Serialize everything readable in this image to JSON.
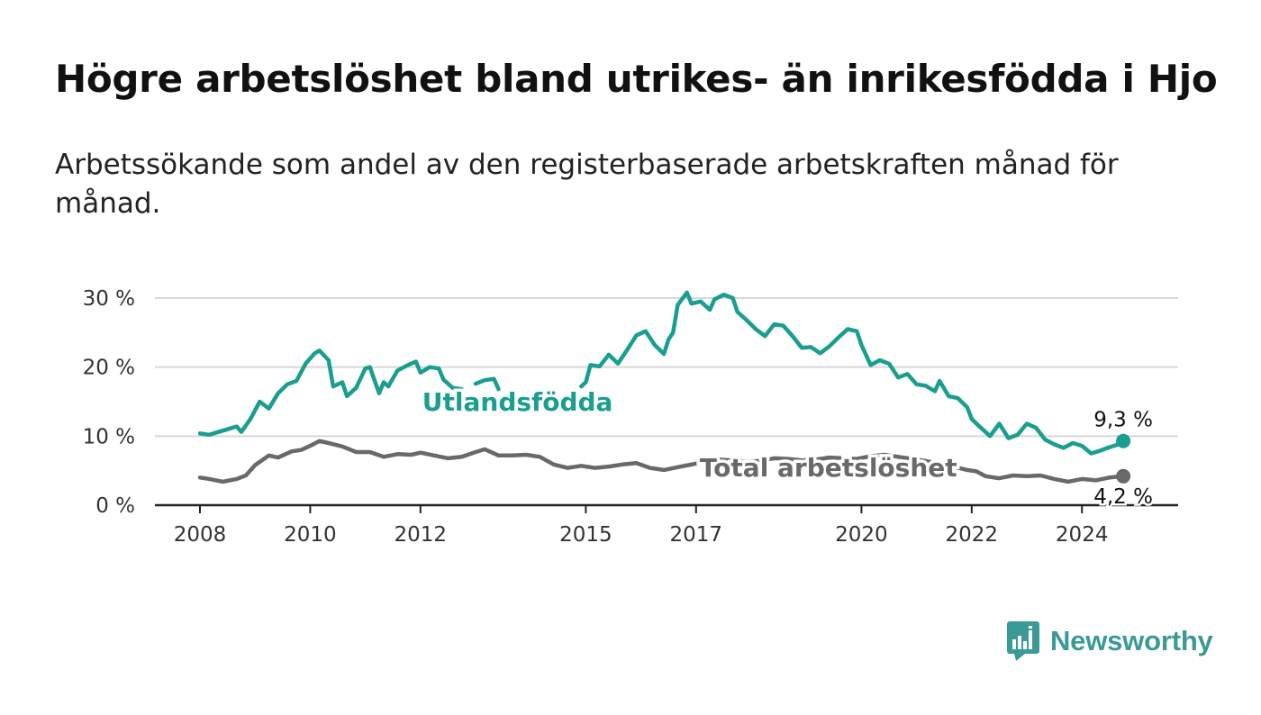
{
  "header": {
    "title": "Högre arbetslöshet bland utrikes- än inrikesfödda i Hjo",
    "subtitle": "Arbetssökande som andel av den registerbaserade arbetskraften månad för månad."
  },
  "brand": {
    "name": "Newsworthy",
    "icon": "newsworthy-logo-icon",
    "color": "#3a9a95"
  },
  "chart_data": {
    "type": "line",
    "title": "Högre arbetslöshet bland utrikes- än inrikesfödda i Hjo",
    "subtitle": "Arbetssökande som andel av den registerbaserade arbetskraften månad för månad.",
    "xlabel": "",
    "ylabel": "",
    "x_range": [
      "2008-01",
      "2025-09"
    ],
    "ylim": [
      0,
      30
    ],
    "y_ticks": [
      0,
      10,
      20,
      30
    ],
    "y_tick_labels": [
      "0 %",
      "10 %",
      "20 %",
      "30 %"
    ],
    "x_ticks": [
      "2008-01",
      "2010-01",
      "2012-01",
      "2015-01",
      "2017-01",
      "2020-01",
      "2022-01",
      "2024-01"
    ],
    "x_tick_labels": [
      "2008",
      "2010",
      "2012",
      "2015",
      "2017",
      "2020",
      "2022",
      "2024"
    ],
    "grid": true,
    "legend": "inline labels",
    "series": [
      {
        "name": "Utlandsfödda",
        "color": "#1a9e8f",
        "end_label": "9,3 %",
        "gaps": [
          [
            "2012-11",
            "2014-12"
          ],
          [
            "2016-09",
            "2016-12"
          ]
        ],
        "points": [
          [
            "2008-01",
            10.4
          ],
          [
            "2008-03",
            10.2
          ],
          [
            "2008-05",
            10.6
          ],
          [
            "2008-07",
            11.0
          ],
          [
            "2008-09",
            11.4
          ],
          [
            "2008-10",
            10.6
          ],
          [
            "2008-12",
            12.5
          ],
          [
            "2009-02",
            15.0
          ],
          [
            "2009-04",
            14.0
          ],
          [
            "2009-06",
            16.2
          ],
          [
            "2009-08",
            17.5
          ],
          [
            "2009-10",
            18.0
          ],
          [
            "2009-12",
            20.5
          ],
          [
            "2010-02",
            22.0
          ],
          [
            "2010-03",
            22.4
          ],
          [
            "2010-05",
            21.0
          ],
          [
            "2010-06",
            17.2
          ],
          [
            "2010-08",
            17.8
          ],
          [
            "2010-09",
            15.8
          ],
          [
            "2010-11",
            17.0
          ],
          [
            "2011-01",
            19.8
          ],
          [
            "2011-02",
            20.0
          ],
          [
            "2011-04",
            16.2
          ],
          [
            "2011-05",
            17.8
          ],
          [
            "2011-06",
            17.2
          ],
          [
            "2011-08",
            19.5
          ],
          [
            "2011-10",
            20.2
          ],
          [
            "2011-12",
            20.8
          ],
          [
            "2012-01",
            19.2
          ],
          [
            "2012-03",
            20.0
          ],
          [
            "2012-05",
            19.8
          ],
          [
            "2012-06",
            18.2
          ],
          [
            "2012-08",
            17.0
          ],
          [
            "2012-10",
            16.8
          ]
        ],
        "points_after_gap": [
          [
            "2013-01",
            17.6
          ],
          [
            "2013-03",
            18.1
          ],
          [
            "2013-05",
            18.3
          ],
          [
            "2013-06",
            16.8
          ]
        ],
        "points_late": [
          [
            "2014-12",
            17.2
          ],
          [
            "2015-01",
            17.8
          ],
          [
            "2015-02",
            20.3
          ],
          [
            "2015-04",
            20.1
          ],
          [
            "2015-06",
            21.8
          ],
          [
            "2015-08",
            20.5
          ],
          [
            "2015-10",
            22.5
          ],
          [
            "2015-12",
            24.6
          ],
          [
            "2016-02",
            25.2
          ],
          [
            "2016-04",
            23.2
          ],
          [
            "2016-06",
            21.9
          ],
          [
            "2016-07",
            24.0
          ],
          [
            "2016-08",
            25.0
          ],
          [
            "2016-09",
            29.0
          ],
          [
            "2016-11",
            30.8
          ],
          [
            "2016-12",
            29.2
          ],
          [
            "2017-02",
            29.5
          ],
          [
            "2017-04",
            28.3
          ],
          [
            "2017-05",
            29.8
          ],
          [
            "2017-07",
            30.5
          ],
          [
            "2017-09",
            30.0
          ],
          [
            "2017-10",
            28.0
          ],
          [
            "2017-12",
            26.8
          ],
          [
            "2018-02",
            25.5
          ],
          [
            "2018-04",
            24.5
          ],
          [
            "2018-06",
            26.2
          ],
          [
            "2018-08",
            26.0
          ],
          [
            "2018-10",
            24.5
          ],
          [
            "2018-12",
            22.8
          ],
          [
            "2019-02",
            22.9
          ],
          [
            "2019-04",
            22.0
          ],
          [
            "2019-06",
            23.0
          ],
          [
            "2019-08",
            24.3
          ],
          [
            "2019-10",
            25.5
          ],
          [
            "2019-12",
            25.2
          ],
          [
            "2020-01",
            23.2
          ],
          [
            "2020-03",
            20.3
          ],
          [
            "2020-05",
            21.0
          ],
          [
            "2020-07",
            20.5
          ],
          [
            "2020-09",
            18.5
          ],
          [
            "2020-11",
            19.0
          ],
          [
            "2021-01",
            17.5
          ],
          [
            "2021-03",
            17.3
          ],
          [
            "2021-05",
            16.5
          ],
          [
            "2021-06",
            18.0
          ],
          [
            "2021-08",
            15.8
          ],
          [
            "2021-10",
            15.5
          ],
          [
            "2021-12",
            14.2
          ],
          [
            "2022-01",
            12.5
          ],
          [
            "2022-03",
            11.2
          ],
          [
            "2022-05",
            10.0
          ],
          [
            "2022-07",
            11.8
          ],
          [
            "2022-09",
            9.7
          ],
          [
            "2022-11",
            10.2
          ],
          [
            "2023-01",
            11.8
          ],
          [
            "2023-03",
            11.2
          ],
          [
            "2023-05",
            9.5
          ],
          [
            "2023-07",
            8.8
          ],
          [
            "2023-09",
            8.3
          ],
          [
            "2023-11",
            9.0
          ],
          [
            "2024-01",
            8.6
          ],
          [
            "2024-03",
            7.5
          ],
          [
            "2024-05",
            7.9
          ],
          [
            "2024-07",
            8.4
          ],
          [
            "2024-09",
            8.8
          ],
          [
            "2024-10",
            9.3
          ]
        ]
      },
      {
        "name": "Total arbetslöshet",
        "color": "#68696b",
        "end_label": "4,2 %",
        "points": [
          [
            "2008-01",
            4.0
          ],
          [
            "2008-03",
            3.8
          ],
          [
            "2008-06",
            3.4
          ],
          [
            "2008-09",
            3.8
          ],
          [
            "2008-11",
            4.3
          ],
          [
            "2009-01",
            5.8
          ],
          [
            "2009-04",
            7.2
          ],
          [
            "2009-06",
            6.9
          ],
          [
            "2009-09",
            7.8
          ],
          [
            "2009-11",
            8.0
          ],
          [
            "2010-01",
            8.6
          ],
          [
            "2010-03",
            9.3
          ],
          [
            "2010-05",
            9.0
          ],
          [
            "2010-08",
            8.5
          ],
          [
            "2010-11",
            7.7
          ],
          [
            "2011-02",
            7.7
          ],
          [
            "2011-05",
            7.0
          ],
          [
            "2011-08",
            7.4
          ],
          [
            "2011-11",
            7.3
          ],
          [
            "2012-01",
            7.6
          ],
          [
            "2012-04",
            7.2
          ],
          [
            "2012-07",
            6.8
          ],
          [
            "2012-10",
            7.0
          ],
          [
            "2013-01",
            7.7
          ],
          [
            "2013-03",
            8.1
          ],
          [
            "2013-06",
            7.2
          ],
          [
            "2013-09",
            7.2
          ],
          [
            "2013-12",
            7.3
          ],
          [
            "2014-03",
            7.0
          ],
          [
            "2014-06",
            5.9
          ],
          [
            "2014-09",
            5.4
          ],
          [
            "2014-12",
            5.7
          ],
          [
            "2015-03",
            5.4
          ],
          [
            "2015-06",
            5.6
          ],
          [
            "2015-09",
            5.9
          ],
          [
            "2015-12",
            6.1
          ],
          [
            "2016-03",
            5.4
          ],
          [
            "2016-06",
            5.1
          ],
          [
            "2016-09",
            5.5
          ],
          [
            "2016-12",
            5.9
          ],
          [
            "2017-03",
            6.3
          ],
          [
            "2017-06",
            6.6
          ],
          [
            "2017-09",
            6.5
          ],
          [
            "2017-12",
            6.3
          ],
          [
            "2018-03",
            6.4
          ],
          [
            "2018-06",
            6.8
          ],
          [
            "2018-09",
            6.7
          ],
          [
            "2018-12",
            6.5
          ],
          [
            "2019-03",
            6.6
          ],
          [
            "2019-06",
            6.9
          ],
          [
            "2019-09",
            6.8
          ],
          [
            "2019-12",
            6.7
          ],
          [
            "2020-03",
            7.1
          ],
          [
            "2020-06",
            7.3
          ],
          [
            "2020-09",
            7.0
          ],
          [
            "2020-12",
            6.7
          ],
          [
            "2021-03",
            6.4
          ],
          [
            "2021-06",
            6.0
          ],
          [
            "2021-09",
            5.6
          ],
          [
            "2021-12",
            5.1
          ],
          [
            "2022-02",
            4.9
          ],
          [
            "2022-04",
            4.2
          ],
          [
            "2022-07",
            3.9
          ],
          [
            "2022-10",
            4.3
          ],
          [
            "2023-01",
            4.2
          ],
          [
            "2023-04",
            4.3
          ],
          [
            "2023-07",
            3.8
          ],
          [
            "2023-10",
            3.4
          ],
          [
            "2024-01",
            3.8
          ],
          [
            "2024-04",
            3.6
          ],
          [
            "2024-07",
            4.0
          ],
          [
            "2024-10",
            4.2
          ]
        ]
      }
    ]
  }
}
